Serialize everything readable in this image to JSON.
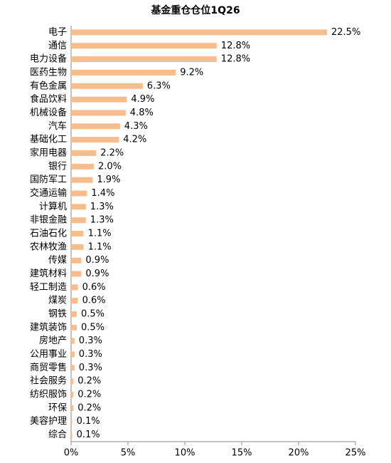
{
  "chart_data": {
    "type": "hbar",
    "title": "基金重仓仓位1Q26",
    "categories": [
      "电子",
      "通信",
      "电力设备",
      "医药生物",
      "有色金属",
      "食品饮料",
      "机械设备",
      "汽车",
      "基础化工",
      "家用电器",
      "银行",
      "国防军工",
      "交通运输",
      "计算机",
      "非银金融",
      "石油石化",
      "农林牧渔",
      "传媒",
      "建筑材料",
      "轻工制造",
      "煤炭",
      "钢铁",
      "建筑装饰",
      "房地产",
      "公用事业",
      "商贸零售",
      "社会服务",
      "纺织服饰",
      "环保",
      "美容护理",
      "综合"
    ],
    "values": [
      22.5,
      12.8,
      12.8,
      9.2,
      6.3,
      4.9,
      4.8,
      4.3,
      4.2,
      2.2,
      2.0,
      1.9,
      1.4,
      1.3,
      1.3,
      1.1,
      1.1,
      0.9,
      0.9,
      0.6,
      0.6,
      0.5,
      0.5,
      0.3,
      0.3,
      0.3,
      0.2,
      0.2,
      0.2,
      0.1,
      0.1
    ],
    "value_labels": [
      "22.5%",
      "12.8%",
      "12.8%",
      "9.2%",
      "6.3%",
      "4.9%",
      "4.8%",
      "4.3%",
      "4.2%",
      "2.2%",
      "2.0%",
      "1.9%",
      "1.4%",
      "1.3%",
      "1.3%",
      "1.1%",
      "1.1%",
      "0.9%",
      "0.9%",
      "0.6%",
      "0.6%",
      "0.5%",
      "0.5%",
      "0.3%",
      "0.3%",
      "0.3%",
      "0.2%",
      "0.2%",
      "0.2%",
      "0.1%",
      "0.1%"
    ],
    "color": "#f7bd8c",
    "xlim": [
      0,
      25
    ],
    "xticks": [
      {
        "value": 0,
        "label": "0%"
      },
      {
        "value": 5,
        "label": "5%"
      },
      {
        "value": 10,
        "label": "10%"
      },
      {
        "value": 15,
        "label": "15%"
      },
      {
        "value": 20,
        "label": "20%"
      },
      {
        "value": 25,
        "label": "25%"
      }
    ],
    "grid": false
  }
}
